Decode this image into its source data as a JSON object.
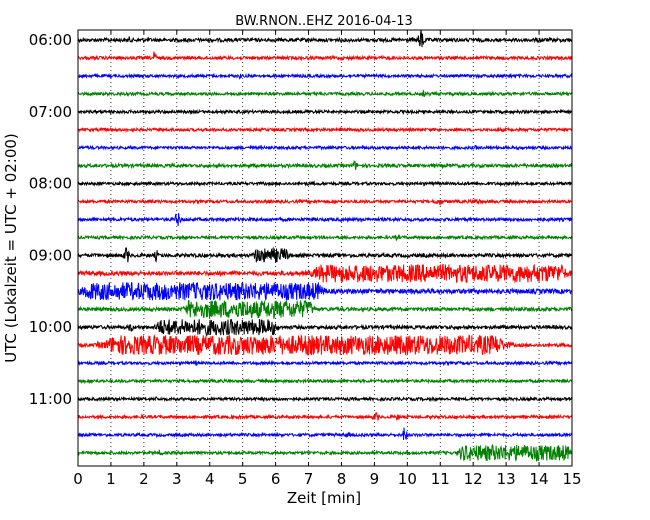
{
  "chart_data": {
    "type": "line",
    "title": "BW.RNON..EHZ 2016-04-13",
    "xlabel": "Zeit  [min]",
    "ylabel": "UTC (Lokalzeit = UTC + 02:00)",
    "xlim": [
      0,
      15
    ],
    "x_ticks": [
      "0",
      "1",
      "2",
      "3",
      "4",
      "5",
      "6",
      "7",
      "8",
      "9",
      "10",
      "11",
      "12",
      "13",
      "14",
      "15"
    ],
    "y_ticks": [
      {
        "time": "06:00",
        "row": 0
      },
      {
        "time": "07:00",
        "row": 4
      },
      {
        "time": "08:00",
        "row": 8
      },
      {
        "time": "09:00",
        "row": 12
      },
      {
        "time": "10:00",
        "row": 16
      },
      {
        "time": "11:00",
        "row": 20
      }
    ],
    "vertical_grid": "dotted",
    "row_colors": [
      "#000000",
      "#ff0000",
      "#0000ff",
      "#008000"
    ],
    "row_start_times": [
      "06:00",
      "06:15",
      "06:30",
      "06:45",
      "07:00",
      "07:15",
      "07:30",
      "07:45",
      "08:00",
      "08:15",
      "08:30",
      "08:45",
      "09:00",
      "09:15",
      "09:30",
      "09:45",
      "10:00",
      "10:15",
      "10:30",
      "10:45",
      "11:00",
      "11:15",
      "11:30",
      "11:45"
    ],
    "row_segment_minutes": 15,
    "base_amplitude": [
      1.0,
      0.9,
      0.8,
      0.8,
      0.8,
      0.8,
      0.8,
      0.9,
      0.8,
      0.8,
      0.9,
      0.8,
      1.0,
      1.2,
      1.3,
      1.0,
      1.0,
      0.9,
      0.8,
      0.8,
      0.8,
      0.8,
      0.8,
      0.8
    ],
    "events": [
      {
        "row": 0,
        "start": 1.45,
        "end": 1.65,
        "amplitude": 2.0
      },
      {
        "row": 0,
        "start": 10.3,
        "end": 10.55,
        "amplitude": 6.0
      },
      {
        "row": 0,
        "start": 13.4,
        "end": 13.55,
        "amplitude": 2.0
      },
      {
        "row": 0,
        "start": 13.8,
        "end": 14.3,
        "amplitude": 1.6
      },
      {
        "row": 1,
        "start": 2.25,
        "end": 2.4,
        "amplitude": 4.0
      },
      {
        "row": 2,
        "start": 4.8,
        "end": 5.0,
        "amplitude": 1.5
      },
      {
        "row": 3,
        "start": 10.4,
        "end": 10.6,
        "amplitude": 1.8
      },
      {
        "row": 5,
        "start": 10.9,
        "end": 11.0,
        "amplitude": 1.5
      },
      {
        "row": 6,
        "start": 12.0,
        "end": 12.2,
        "amplitude": 1.4
      },
      {
        "row": 7,
        "start": 8.3,
        "end": 8.5,
        "amplitude": 3.0
      },
      {
        "row": 9,
        "start": 10.7,
        "end": 11.2,
        "amplitude": 1.8
      },
      {
        "row": 9,
        "start": 11.8,
        "end": 12.4,
        "amplitude": 1.6
      },
      {
        "row": 10,
        "start": 2.9,
        "end": 3.15,
        "amplitude": 4.0
      },
      {
        "row": 11,
        "start": 9.6,
        "end": 9.8,
        "amplitude": 1.8
      },
      {
        "row": 12,
        "start": 1.35,
        "end": 1.6,
        "amplitude": 4.5
      },
      {
        "row": 12,
        "start": 2.3,
        "end": 2.45,
        "amplitude": 3.5
      },
      {
        "row": 12,
        "start": 5.3,
        "end": 6.4,
        "amplitude": 4.0
      },
      {
        "row": 13,
        "start": 7.0,
        "end": 15.0,
        "amplitude": 5.0
      },
      {
        "row": 14,
        "start": 0.0,
        "end": 7.6,
        "amplitude": 5.0
      },
      {
        "row": 14,
        "start": 10.6,
        "end": 10.8,
        "amplitude": 1.8
      },
      {
        "row": 15,
        "start": 3.2,
        "end": 7.2,
        "amplitude": 5.0
      },
      {
        "row": 16,
        "start": 1.5,
        "end": 1.7,
        "amplitude": 3.0
      },
      {
        "row": 16,
        "start": 2.3,
        "end": 6.1,
        "amplitude": 4.5
      },
      {
        "row": 17,
        "start": 0.6,
        "end": 13.2,
        "amplitude": 5.5
      },
      {
        "row": 18,
        "start": 3.5,
        "end": 3.7,
        "amplitude": 1.4
      },
      {
        "row": 20,
        "start": 2.3,
        "end": 2.5,
        "amplitude": 1.4
      },
      {
        "row": 21,
        "start": 8.9,
        "end": 9.2,
        "amplitude": 2.5
      },
      {
        "row": 21,
        "start": 9.6,
        "end": 9.8,
        "amplitude": 1.8
      },
      {
        "row": 22,
        "start": 8.1,
        "end": 8.3,
        "amplitude": 1.5
      },
      {
        "row": 22,
        "start": 9.85,
        "end": 10.0,
        "amplitude": 6.0
      },
      {
        "row": 23,
        "start": 2.4,
        "end": 2.6,
        "amplitude": 2.0
      },
      {
        "row": 23,
        "start": 11.5,
        "end": 15.0,
        "amplitude": 4.5
      }
    ]
  }
}
